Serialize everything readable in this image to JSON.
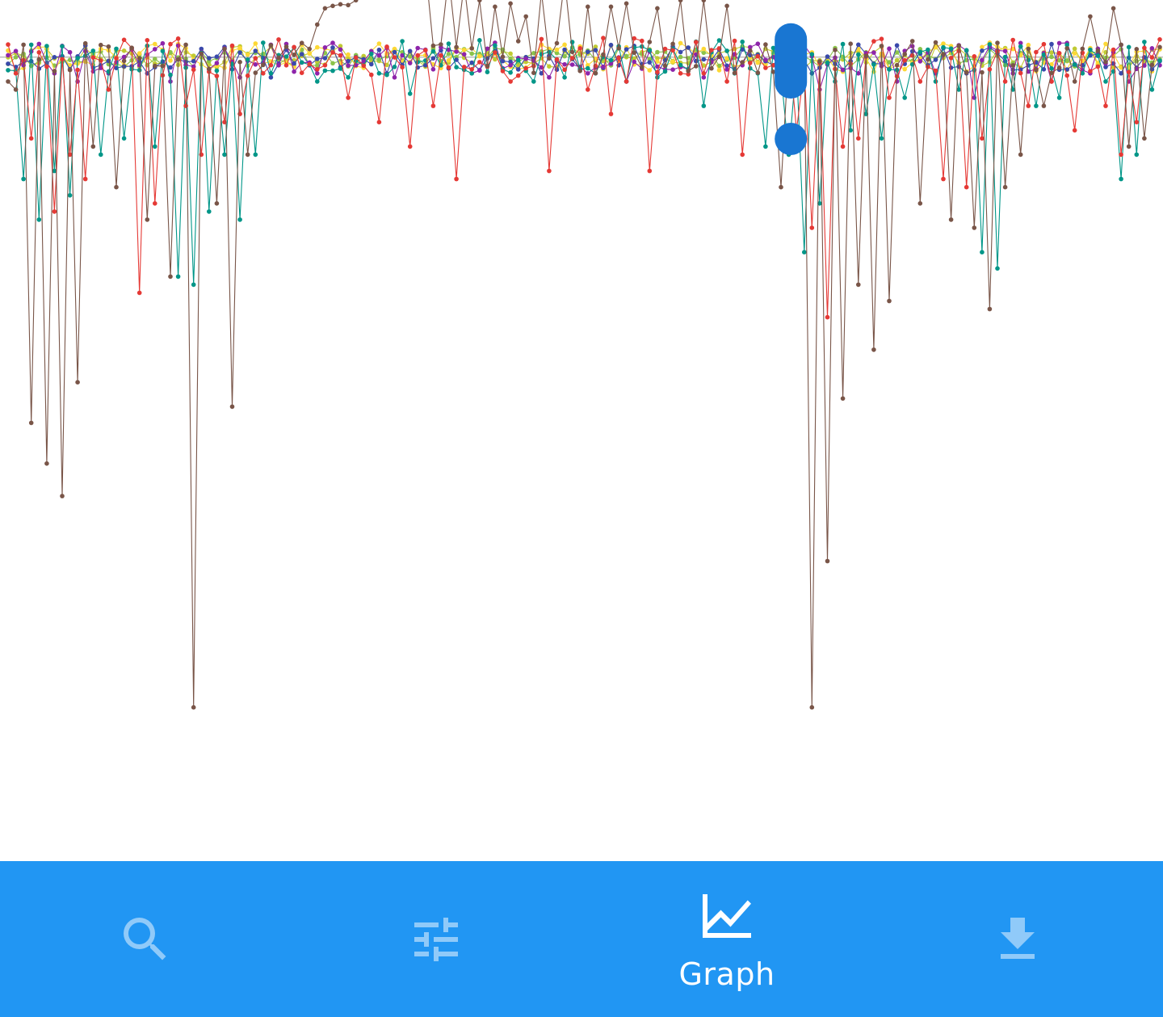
{
  "theme": {
    "nav_background": "#2196F3",
    "nav_active_color": "#FFFFFF",
    "nav_inactive_color": "#90CAF9",
    "scrollbar_color": "#1976D2",
    "chart_background": "#FFFFFF"
  },
  "bottom_nav": {
    "items": [
      {
        "id": "search",
        "icon": "search-icon",
        "label": "",
        "active": false
      },
      {
        "id": "filters",
        "icon": "tune-icon",
        "label": "",
        "active": false
      },
      {
        "id": "graph",
        "icon": "show-chart-icon",
        "label": "Graph",
        "active": true
      },
      {
        "id": "download",
        "icon": "download-icon",
        "label": "",
        "active": false
      }
    ]
  },
  "chart_data": {
    "type": "line",
    "markers": true,
    "legend": "none",
    "grid": false,
    "axes_visible": false,
    "baseline": 0,
    "ylim": [
      -850,
      110
    ],
    "colors": {
      "brown": "#795548",
      "teal": "#009688",
      "red": "#E53935",
      "purple": "#8E24AA",
      "indigo": "#3949AB",
      "lime": "#C0CA33",
      "yellow": "#FDD835",
      "green": "#8BC34A"
    },
    "x_count": 150,
    "spikes": {
      "brown": [
        [
          0,
          -30
        ],
        [
          1,
          -40
        ],
        [
          3,
          -450
        ],
        [
          5,
          -500
        ],
        [
          7,
          -540
        ],
        [
          9,
          -400
        ],
        [
          11,
          -110
        ],
        [
          14,
          -160
        ],
        [
          18,
          -200
        ],
        [
          21,
          -270
        ],
        [
          24,
          -800
        ],
        [
          27,
          -180
        ],
        [
          29,
          -430
        ],
        [
          31,
          -120
        ],
        [
          39,
          10
        ],
        [
          40,
          40
        ],
        [
          41,
          60
        ],
        [
          42,
          63
        ],
        [
          43,
          65
        ],
        [
          44,
          64
        ],
        [
          45,
          70
        ],
        [
          46,
          85
        ],
        [
          47,
          95
        ],
        [
          48,
          96
        ],
        [
          49,
          94
        ],
        [
          50,
          84
        ],
        [
          51,
          80
        ],
        [
          52,
          82
        ],
        [
          53,
          95
        ],
        [
          54,
          110
        ],
        [
          57,
          100
        ],
        [
          59,
          90
        ],
        [
          61,
          70
        ],
        [
          63,
          62
        ],
        [
          65,
          66
        ],
        [
          67,
          50
        ],
        [
          69,
          80
        ],
        [
          72,
          95
        ],
        [
          75,
          62
        ],
        [
          78,
          62
        ],
        [
          80,
          66
        ],
        [
          84,
          60
        ],
        [
          87,
          70
        ],
        [
          90,
          70
        ],
        [
          93,
          63
        ],
        [
          100,
          -160
        ],
        [
          104,
          -800
        ],
        [
          106,
          -620
        ],
        [
          108,
          -420
        ],
        [
          110,
          -280
        ],
        [
          112,
          -360
        ],
        [
          114,
          -300
        ],
        [
          118,
          -180
        ],
        [
          122,
          -200
        ],
        [
          125,
          -210
        ],
        [
          127,
          -310
        ],
        [
          129,
          -160
        ],
        [
          131,
          -120
        ],
        [
          134,
          -60
        ],
        [
          138,
          -30
        ],
        [
          140,
          50
        ],
        [
          143,
          60
        ],
        [
          145,
          -110
        ],
        [
          147,
          -100
        ]
      ],
      "teal": [
        [
          2,
          -150
        ],
        [
          4,
          -200
        ],
        [
          6,
          -140
        ],
        [
          8,
          -170
        ],
        [
          12,
          -120
        ],
        [
          15,
          -100
        ],
        [
          19,
          -110
        ],
        [
          22,
          -270
        ],
        [
          24,
          -280
        ],
        [
          26,
          -190
        ],
        [
          28,
          -120
        ],
        [
          30,
          -200
        ],
        [
          32,
          -120
        ],
        [
          34,
          -20
        ],
        [
          40,
          -30
        ],
        [
          44,
          -25
        ],
        [
          48,
          -20
        ],
        [
          52,
          -45
        ],
        [
          56,
          -10
        ],
        [
          60,
          -20
        ],
        [
          64,
          -15
        ],
        [
          68,
          -30
        ],
        [
          72,
          -25
        ],
        [
          76,
          -20
        ],
        [
          80,
          -30
        ],
        [
          84,
          -25
        ],
        [
          88,
          -15
        ],
        [
          90,
          -60
        ],
        [
          94,
          -20
        ],
        [
          97,
          -20
        ],
        [
          98,
          -110
        ],
        [
          101,
          -120
        ],
        [
          103,
          -240
        ],
        [
          105,
          -180
        ],
        [
          107,
          -30
        ],
        [
          109,
          -90
        ],
        [
          111,
          -70
        ],
        [
          113,
          -100
        ],
        [
          116,
          -50
        ],
        [
          120,
          -30
        ],
        [
          123,
          -40
        ],
        [
          126,
          -240
        ],
        [
          128,
          -260
        ],
        [
          130,
          -40
        ],
        [
          133,
          -60
        ],
        [
          136,
          -50
        ],
        [
          139,
          -20
        ],
        [
          142,
          -30
        ],
        [
          144,
          -150
        ],
        [
          146,
          -120
        ],
        [
          148,
          -40
        ]
      ],
      "red": [
        [
          1,
          -20
        ],
        [
          3,
          -100
        ],
        [
          6,
          -190
        ],
        [
          8,
          -120
        ],
        [
          10,
          -150
        ],
        [
          13,
          -40
        ],
        [
          17,
          -290
        ],
        [
          19,
          -180
        ],
        [
          23,
          -60
        ],
        [
          25,
          -120
        ],
        [
          28,
          -80
        ],
        [
          30,
          -70
        ],
        [
          33,
          -20
        ],
        [
          36,
          -10
        ],
        [
          40,
          -15
        ],
        [
          44,
          -50
        ],
        [
          48,
          -80
        ],
        [
          52,
          -110
        ],
        [
          55,
          -60
        ],
        [
          58,
          -150
        ],
        [
          60,
          -15
        ],
        [
          65,
          -30
        ],
        [
          70,
          -140
        ],
        [
          75,
          -40
        ],
        [
          78,
          -70
        ],
        [
          80,
          -30
        ],
        [
          83,
          -140
        ],
        [
          87,
          -20
        ],
        [
          90,
          -20
        ],
        [
          93,
          -30
        ],
        [
          95,
          -120
        ],
        [
          99,
          -10
        ],
        [
          102,
          -90
        ],
        [
          104,
          -210
        ],
        [
          106,
          -320
        ],
        [
          108,
          -110
        ],
        [
          110,
          -100
        ],
        [
          114,
          -50
        ],
        [
          118,
          -30
        ],
        [
          121,
          -150
        ],
        [
          124,
          -160
        ],
        [
          126,
          -100
        ],
        [
          129,
          -30
        ],
        [
          132,
          -60
        ],
        [
          135,
          -30
        ],
        [
          138,
          -90
        ],
        [
          142,
          -60
        ],
        [
          144,
          -120
        ],
        [
          146,
          -80
        ]
      ],
      "purple": [
        [
          2,
          -10
        ],
        [
          6,
          -20
        ],
        [
          9,
          -30
        ],
        [
          13,
          -20
        ],
        [
          17,
          -10
        ],
        [
          21,
          -30
        ],
        [
          26,
          -15
        ],
        [
          30,
          -25
        ],
        [
          35,
          -10
        ],
        [
          40,
          -20
        ],
        [
          45,
          -10
        ],
        [
          50,
          -25
        ],
        [
          55,
          -15
        ],
        [
          60,
          -20
        ],
        [
          65,
          -10
        ],
        [
          70,
          -25
        ],
        [
          75,
          -20
        ],
        [
          80,
          -30
        ],
        [
          85,
          -15
        ],
        [
          90,
          -25
        ],
        [
          95,
          -10
        ],
        [
          100,
          -20
        ],
        [
          105,
          -40
        ],
        [
          110,
          -20
        ],
        [
          115,
          -30
        ],
        [
          120,
          -20
        ],
        [
          125,
          -50
        ],
        [
          130,
          -20
        ],
        [
          135,
          -30
        ],
        [
          140,
          -20
        ],
        [
          145,
          -30
        ],
        [
          149,
          -10
        ]
      ],
      "indigo": [
        [
          3,
          -5
        ],
        [
          8,
          -15
        ],
        [
          12,
          -10
        ],
        [
          18,
          -20
        ],
        [
          24,
          -5
        ],
        [
          29,
          -15
        ],
        [
          34,
          -25
        ],
        [
          39,
          -10
        ],
        [
          44,
          -5
        ],
        [
          49,
          -20
        ],
        [
          54,
          -10
        ],
        [
          59,
          -15
        ],
        [
          64,
          -5
        ],
        [
          69,
          -20
        ],
        [
          74,
          -15
        ],
        [
          79,
          -10
        ],
        [
          84,
          -20
        ],
        [
          89,
          -5
        ],
        [
          94,
          -15
        ],
        [
          99,
          -10
        ],
        [
          104,
          -20
        ],
        [
          109,
          -5
        ],
        [
          114,
          -15
        ],
        [
          119,
          -10
        ],
        [
          124,
          -20
        ],
        [
          129,
          -5
        ],
        [
          134,
          -15
        ],
        [
          139,
          -10
        ],
        [
          144,
          -20
        ],
        [
          149,
          -5
        ]
      ],
      "lime": [
        [
          1,
          5
        ],
        [
          5,
          10
        ],
        [
          9,
          -5
        ],
        [
          14,
          8
        ],
        [
          19,
          -8
        ],
        [
          23,
          6
        ],
        [
          28,
          -6
        ],
        [
          33,
          4
        ],
        [
          37,
          -4
        ],
        [
          42,
          8
        ],
        [
          47,
          -5
        ],
        [
          52,
          6
        ],
        [
          57,
          -7
        ],
        [
          62,
          5
        ],
        [
          67,
          -6
        ],
        [
          72,
          7
        ],
        [
          77,
          -5
        ],
        [
          82,
          6
        ],
        [
          87,
          -7
        ],
        [
          92,
          5
        ],
        [
          97,
          -6
        ],
        [
          102,
          7
        ],
        [
          107,
          -5
        ],
        [
          112,
          6
        ],
        [
          117,
          -7
        ],
        [
          122,
          5
        ],
        [
          127,
          -6
        ],
        [
          132,
          7
        ],
        [
          137,
          -5
        ],
        [
          142,
          6
        ],
        [
          147,
          -7
        ]
      ],
      "yellow": [
        [
          0,
          8
        ],
        [
          4,
          12
        ],
        [
          8,
          -10
        ],
        [
          12,
          10
        ],
        [
          16,
          -12
        ],
        [
          20,
          9
        ],
        [
          25,
          -9
        ],
        [
          30,
          11
        ],
        [
          35,
          -10
        ],
        [
          40,
          12
        ],
        [
          45,
          -11
        ],
        [
          50,
          10
        ],
        [
          55,
          -9
        ],
        [
          60,
          11
        ],
        [
          65,
          -12
        ],
        [
          70,
          10
        ],
        [
          75,
          -10
        ],
        [
          80,
          12
        ],
        [
          85,
          -11
        ],
        [
          90,
          10
        ],
        [
          95,
          -9
        ],
        [
          100,
          11
        ],
        [
          105,
          -12
        ],
        [
          110,
          10
        ],
        [
          115,
          -10
        ],
        [
          120,
          12
        ],
        [
          125,
          -11
        ],
        [
          130,
          10
        ],
        [
          135,
          -9
        ],
        [
          140,
          11
        ],
        [
          145,
          -12
        ],
        [
          149,
          10
        ]
      ],
      "green": [
        [
          2,
          4
        ],
        [
          7,
          -6
        ],
        [
          11,
          5
        ],
        [
          16,
          -4
        ],
        [
          21,
          6
        ],
        [
          26,
          -5
        ],
        [
          31,
          4
        ],
        [
          36,
          -6
        ],
        [
          41,
          5
        ],
        [
          46,
          -4
        ],
        [
          51,
          6
        ],
        [
          56,
          -5
        ],
        [
          61,
          4
        ],
        [
          66,
          -6
        ],
        [
          71,
          5
        ],
        [
          76,
          -4
        ],
        [
          81,
          6
        ],
        [
          86,
          -5
        ],
        [
          91,
          4
        ],
        [
          96,
          -6
        ],
        [
          101,
          5
        ],
        [
          106,
          -4
        ],
        [
          111,
          6
        ],
        [
          116,
          -5
        ],
        [
          121,
          4
        ],
        [
          126,
          -6
        ],
        [
          131,
          5
        ],
        [
          136,
          -4
        ],
        [
          141,
          6
        ],
        [
          146,
          -5
        ]
      ]
    },
    "scrollbar": {
      "position": 0.11,
      "extent": 0.05
    }
  }
}
